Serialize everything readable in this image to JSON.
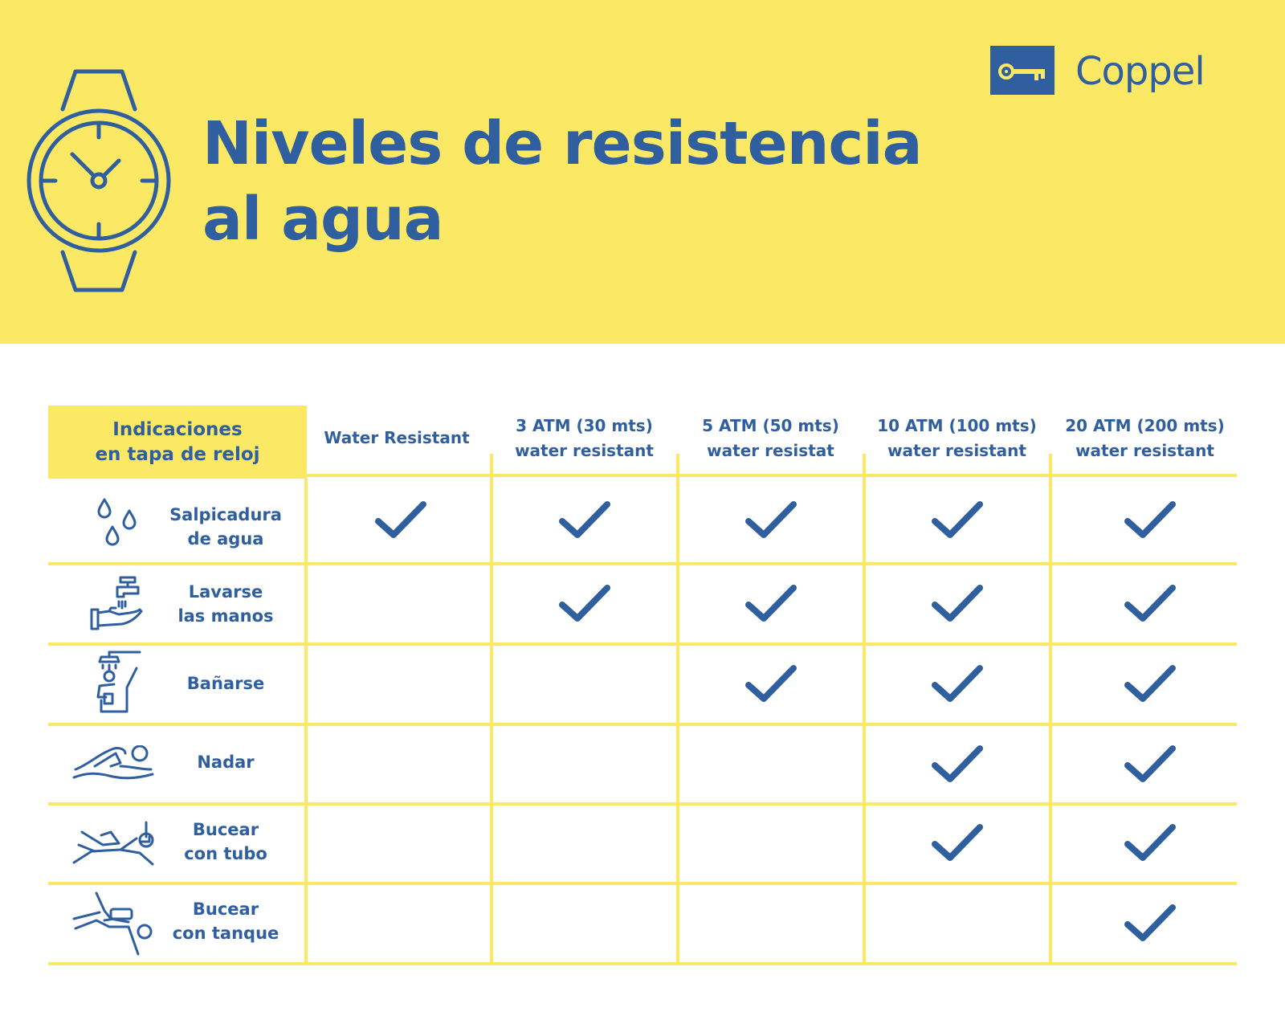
{
  "header": {
    "title_lines": [
      "Niveles de resistencia",
      "al agua"
    ],
    "brand": "Coppel",
    "icon": "wristwatch-icon",
    "brand_icon": "key-logo-icon",
    "colors": {
      "yellow": "#fbe965",
      "blue": "#2f5f9e"
    }
  },
  "table": {
    "corner_lines": [
      "Indicaciones",
      "en tapa de reloj"
    ],
    "columns": [
      {
        "lines": [
          "Water Resistant"
        ]
      },
      {
        "lines": [
          "3 ATM (30 mts)",
          "water resistant"
        ]
      },
      {
        "lines": [
          "5 ATM (50 mts)",
          "water resistat"
        ]
      },
      {
        "lines": [
          "10 ATM (100 mts)",
          "water resistant"
        ]
      },
      {
        "lines": [
          "20 ATM (200 mts)",
          "water resistant"
        ]
      }
    ],
    "rows": [
      {
        "lines": [
          "Salpicadura",
          "de agua"
        ],
        "icon": "water-drops-icon",
        "checks": [
          true,
          true,
          true,
          true,
          true
        ]
      },
      {
        "lines": [
          "Lavarse",
          "las manos"
        ],
        "icon": "hand-washing-icon",
        "checks": [
          false,
          true,
          true,
          true,
          true
        ]
      },
      {
        "lines": [
          "Bañarse"
        ],
        "icon": "shower-icon",
        "checks": [
          false,
          false,
          true,
          true,
          true
        ]
      },
      {
        "lines": [
          "Nadar"
        ],
        "icon": "swimmer-icon",
        "checks": [
          false,
          false,
          false,
          true,
          true
        ]
      },
      {
        "lines": [
          "Bucear",
          "con tubo"
        ],
        "icon": "snorkel-icon",
        "checks": [
          false,
          false,
          false,
          true,
          true
        ]
      },
      {
        "lines": [
          "Bucear",
          "con tanque"
        ],
        "icon": "scuba-diver-icon",
        "checks": [
          false,
          false,
          false,
          false,
          true
        ]
      }
    ],
    "check_icon": "checkmark-icon"
  }
}
